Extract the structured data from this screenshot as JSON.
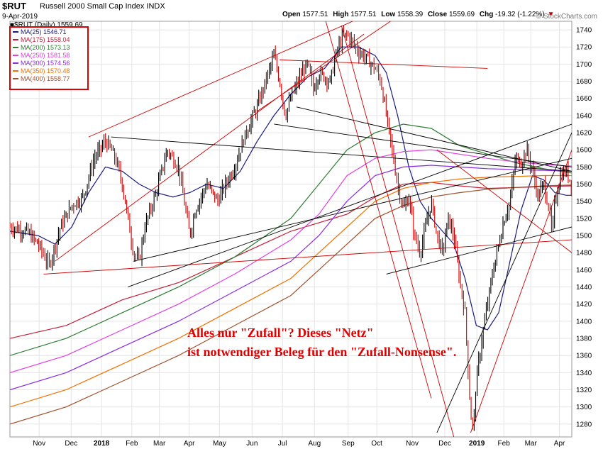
{
  "header": {
    "symbol": "$RUT",
    "name": "Russell 2000 Small Cap Index",
    "exchange": "INDX",
    "date": "9-Apr-2019",
    "brand": "© StockCharts.com",
    "open_label": "Open",
    "open": "1577.51",
    "high_label": "High",
    "high": "1577.51",
    "low_label": "Low",
    "low": "1558.39",
    "close_label": "Close",
    "close": "1559.69",
    "chg_label": "Chg",
    "chg": "-19.32 (-1.22%)",
    "chg_arrow": "▼"
  },
  "daily_label": "■$RUT (Daily) 1559.69",
  "legend": [
    {
      "label": "MA(25) 1546.71",
      "color": "#1a1a80"
    },
    {
      "label": "MA(175) 1558.04",
      "color": "#c41e3a"
    },
    {
      "label": "MA(200) 1573.13",
      "color": "#2e7d32"
    },
    {
      "label": "MA(250) 1581.58",
      "color": "#e040e0"
    },
    {
      "label": "MA(300) 1574.56",
      "color": "#8a2be2"
    },
    {
      "label": "MA(350) 1570.48",
      "color": "#f07000"
    },
    {
      "label": "MA(400) 1558.77",
      "color": "#a0522d"
    }
  ],
  "annotation": {
    "line1": "Alles nur \"Zufall\"? Dieses \"Netz\"",
    "line2": "ist notwendiger Beleg für den \"Zufall-Nonsense\"."
  },
  "chart_data": {
    "type": "line",
    "title": "$RUT Russell 2000 Small Cap Index (Daily)",
    "y_ticks": [
      1280,
      1300,
      1320,
      1340,
      1360,
      1380,
      1400,
      1420,
      1440,
      1460,
      1480,
      1500,
      1520,
      1540,
      1560,
      1580,
      1600,
      1620,
      1640,
      1660,
      1680,
      1700,
      1720,
      1740
    ],
    "ylim": [
      1265,
      1750
    ],
    "xlim": [
      0,
      100
    ],
    "x_ticks": [
      {
        "label": "Nov",
        "x": 5.2
      },
      {
        "label": "Dec",
        "x": 10.9
      },
      {
        "label": "2018",
        "x": 16.3
      },
      {
        "label": "Feb",
        "x": 21.7
      },
      {
        "label": "Mar",
        "x": 26.6
      },
      {
        "label": "Apr",
        "x": 31.9
      },
      {
        "label": "May",
        "x": 37.3
      },
      {
        "label": "Jun",
        "x": 43.1
      },
      {
        "label": "Jul",
        "x": 48.5
      },
      {
        "label": "Aug",
        "x": 54.2
      },
      {
        "label": "Sep",
        "x": 60.2
      },
      {
        "label": "Oct",
        "x": 65.3
      },
      {
        "label": "Nov",
        "x": 71.6
      },
      {
        "label": "Dec",
        "x": 77.4
      },
      {
        "label": "2019",
        "x": 83.1
      },
      {
        "label": "Feb",
        "x": 87.9
      },
      {
        "label": "Mar",
        "x": 92.7
      },
      {
        "label": "Apr",
        "x": 97.8
      }
    ],
    "price": [
      [
        0,
        1510
      ],
      [
        3,
        1505
      ],
      [
        5,
        1490
      ],
      [
        7,
        1465
      ],
      [
        9,
        1510
      ],
      [
        11,
        1535
      ],
      [
        13,
        1545
      ],
      [
        15,
        1590
      ],
      [
        17,
        1610
      ],
      [
        18,
        1600
      ],
      [
        19,
        1585
      ],
      [
        20,
        1560
      ],
      [
        21,
        1520
      ],
      [
        22,
        1480
      ],
      [
        23,
        1470
      ],
      [
        24,
        1510
      ],
      [
        26,
        1550
      ],
      [
        28,
        1600
      ],
      [
        30,
        1580
      ],
      [
        31,
        1540
      ],
      [
        32,
        1500
      ],
      [
        33,
        1530
      ],
      [
        35,
        1560
      ],
      [
        37,
        1540
      ],
      [
        38,
        1555
      ],
      [
        40,
        1580
      ],
      [
        42,
        1620
      ],
      [
        44,
        1650
      ],
      [
        46,
        1690
      ],
      [
        47,
        1710
      ],
      [
        48,
        1680
      ],
      [
        49,
        1640
      ],
      [
        50,
        1660
      ],
      [
        52,
        1690
      ],
      [
        53,
        1700
      ],
      [
        54,
        1670
      ],
      [
        55,
        1690
      ],
      [
        57,
        1680
      ],
      [
        58,
        1710
      ],
      [
        59,
        1730
      ],
      [
        60,
        1735
      ],
      [
        61,
        1725
      ],
      [
        62,
        1715
      ],
      [
        63,
        1710
      ],
      [
        65,
        1695
      ],
      [
        66,
        1680
      ],
      [
        67,
        1640
      ],
      [
        68,
        1600
      ],
      [
        69,
        1560
      ],
      [
        70,
        1530
      ],
      [
        71,
        1545
      ],
      [
        72,
        1500
      ],
      [
        73,
        1480
      ],
      [
        74,
        1510
      ],
      [
        75,
        1540
      ],
      [
        76,
        1500
      ],
      [
        77,
        1480
      ],
      [
        78,
        1520
      ],
      [
        79,
        1500
      ],
      [
        80,
        1450
      ],
      [
        81,
        1410
      ],
      [
        82,
        1290
      ],
      [
        82.5,
        1275
      ],
      [
        83,
        1330
      ],
      [
        84,
        1380
      ],
      [
        85,
        1420
      ],
      [
        86,
        1460
      ],
      [
        87,
        1490
      ],
      [
        88,
        1520
      ],
      [
        89,
        1540
      ],
      [
        90,
        1590
      ],
      [
        91,
        1585
      ],
      [
        92,
        1600
      ],
      [
        93,
        1575
      ],
      [
        94,
        1545
      ],
      [
        95,
        1560
      ],
      [
        96,
        1530
      ],
      [
        96.5,
        1500
      ],
      [
        97,
        1540
      ],
      [
        98,
        1570
      ],
      [
        99,
        1575
      ],
      [
        100,
        1560
      ]
    ],
    "series": [
      {
        "name": "MA(25)",
        "values": [
          [
            0,
            1505
          ],
          [
            5,
            1500
          ],
          [
            8,
            1490
          ],
          [
            11,
            1510
          ],
          [
            14,
            1550
          ],
          [
            17,
            1580
          ],
          [
            20,
            1575
          ],
          [
            23,
            1560
          ],
          [
            26,
            1550
          ],
          [
            29,
            1545
          ],
          [
            32,
            1550
          ],
          [
            35,
            1560
          ],
          [
            38,
            1555
          ],
          [
            41,
            1575
          ],
          [
            44,
            1610
          ],
          [
            47,
            1640
          ],
          [
            50,
            1665
          ],
          [
            53,
            1685
          ],
          [
            56,
            1695
          ],
          [
            59,
            1720
          ],
          [
            62,
            1720
          ],
          [
            65,
            1710
          ],
          [
            67,
            1690
          ],
          [
            69,
            1640
          ],
          [
            71,
            1580
          ],
          [
            73,
            1540
          ],
          [
            75,
            1520
          ],
          [
            77,
            1505
          ],
          [
            79,
            1490
          ],
          [
            81,
            1450
          ],
          [
            83,
            1395
          ],
          [
            85,
            1390
          ],
          [
            87,
            1410
          ],
          [
            89,
            1470
          ],
          [
            91,
            1530
          ],
          [
            93,
            1570
          ],
          [
            95,
            1565
          ],
          [
            97,
            1550
          ],
          [
            99,
            1547
          ],
          [
            100,
            1547
          ]
        ]
      },
      {
        "name": "MA(175)",
        "values": [
          [
            0,
            1380
          ],
          [
            10,
            1395
          ],
          [
            20,
            1425
          ],
          [
            30,
            1445
          ],
          [
            40,
            1475
          ],
          [
            50,
            1505
          ],
          [
            60,
            1525
          ],
          [
            65,
            1545
          ],
          [
            70,
            1560
          ],
          [
            75,
            1562
          ],
          [
            80,
            1558
          ],
          [
            85,
            1555
          ],
          [
            90,
            1556
          ],
          [
            95,
            1557
          ],
          [
            100,
            1558
          ]
        ]
      },
      {
        "name": "MA(200)",
        "values": [
          [
            0,
            1360
          ],
          [
            10,
            1380
          ],
          [
            20,
            1410
          ],
          [
            30,
            1440
          ],
          [
            40,
            1475
          ],
          [
            50,
            1520
          ],
          [
            55,
            1560
          ],
          [
            60,
            1600
          ],
          [
            65,
            1620
          ],
          [
            70,
            1630
          ],
          [
            75,
            1625
          ],
          [
            80,
            1605
          ],
          [
            85,
            1595
          ],
          [
            90,
            1585
          ],
          [
            95,
            1578
          ],
          [
            100,
            1573
          ]
        ]
      },
      {
        "name": "MA(250)",
        "values": [
          [
            0,
            1340
          ],
          [
            10,
            1360
          ],
          [
            20,
            1390
          ],
          [
            30,
            1420
          ],
          [
            40,
            1455
          ],
          [
            50,
            1495
          ],
          [
            55,
            1525
          ],
          [
            60,
            1570
          ],
          [
            65,
            1590
          ],
          [
            70,
            1598
          ],
          [
            75,
            1600
          ],
          [
            80,
            1595
          ],
          [
            85,
            1590
          ],
          [
            90,
            1586
          ],
          [
            95,
            1583
          ],
          [
            100,
            1581
          ]
        ]
      },
      {
        "name": "MA(300)",
        "values": [
          [
            0,
            1320
          ],
          [
            10,
            1340
          ],
          [
            20,
            1370
          ],
          [
            30,
            1400
          ],
          [
            40,
            1435
          ],
          [
            50,
            1470
          ],
          [
            55,
            1500
          ],
          [
            60,
            1540
          ],
          [
            65,
            1570
          ],
          [
            70,
            1580
          ],
          [
            75,
            1582
          ],
          [
            80,
            1580
          ],
          [
            85,
            1578
          ],
          [
            90,
            1577
          ],
          [
            95,
            1576
          ],
          [
            100,
            1575
          ]
        ]
      },
      {
        "name": "MA(350)",
        "values": [
          [
            0,
            1300
          ],
          [
            10,
            1320
          ],
          [
            20,
            1350
          ],
          [
            30,
            1380
          ],
          [
            40,
            1415
          ],
          [
            50,
            1450
          ],
          [
            55,
            1480
          ],
          [
            60,
            1510
          ],
          [
            65,
            1540
          ],
          [
            70,
            1555
          ],
          [
            75,
            1562
          ],
          [
            80,
            1566
          ],
          [
            85,
            1568
          ],
          [
            90,
            1569
          ],
          [
            95,
            1570
          ],
          [
            100,
            1570
          ]
        ]
      },
      {
        "name": "MA(400)",
        "values": [
          [
            0,
            1280
          ],
          [
            10,
            1300
          ],
          [
            20,
            1330
          ],
          [
            30,
            1360
          ],
          [
            40,
            1395
          ],
          [
            50,
            1430
          ],
          [
            55,
            1460
          ],
          [
            60,
            1490
          ],
          [
            65,
            1520
          ],
          [
            70,
            1535
          ],
          [
            75,
            1545
          ],
          [
            80,
            1550
          ],
          [
            85,
            1554
          ],
          [
            90,
            1556
          ],
          [
            95,
            1558
          ],
          [
            100,
            1559
          ]
        ]
      }
    ],
    "trendlines": [
      {
        "color": "#cc0000",
        "from": [
          6,
          1455
        ],
        "to": [
          100,
          1495
        ]
      },
      {
        "color": "#cc0000",
        "from": [
          14,
          1615
        ],
        "to": [
          61,
          1750
        ]
      },
      {
        "color": "#cc0000",
        "from": [
          8,
          1470
        ],
        "to": [
          63,
          1735
        ]
      },
      {
        "color": "#cc0000",
        "from": [
          44,
          1645
        ],
        "to": [
          70,
          1760
        ]
      },
      {
        "color": "#cc0000",
        "from": [
          48,
          1705
        ],
        "to": [
          85,
          1695
        ]
      },
      {
        "color": "#cc0000",
        "from": [
          59,
          1745
        ],
        "to": [
          79,
          1265
        ]
      },
      {
        "color": "#cc0000",
        "from": [
          56,
          1755
        ],
        "to": [
          75,
          1310
        ]
      },
      {
        "color": "#cc0000",
        "from": [
          76,
          1600
        ],
        "to": [
          100,
          1480
        ]
      },
      {
        "color": "#cc0000",
        "from": [
          82,
          1270
        ],
        "to": [
          100,
          1600
        ]
      },
      {
        "color": "#000000",
        "from": [
          18,
          1615
        ],
        "to": [
          100,
          1575
        ]
      },
      {
        "color": "#000000",
        "from": [
          21,
          1440
        ],
        "to": [
          100,
          1630
        ]
      },
      {
        "color": "#000000",
        "from": [
          22,
          1470
        ],
        "to": [
          100,
          1590
        ]
      },
      {
        "color": "#000000",
        "from": [
          47,
          1630
        ],
        "to": [
          100,
          1580
        ]
      },
      {
        "color": "#000000",
        "from": [
          51,
          1650
        ],
        "to": [
          100,
          1575
        ]
      },
      {
        "color": "#000000",
        "from": [
          67,
          1455
        ],
        "to": [
          100,
          1510
        ]
      },
      {
        "color": "#000000",
        "from": [
          76,
          1270
        ],
        "to": [
          100,
          1620
        ]
      }
    ]
  }
}
